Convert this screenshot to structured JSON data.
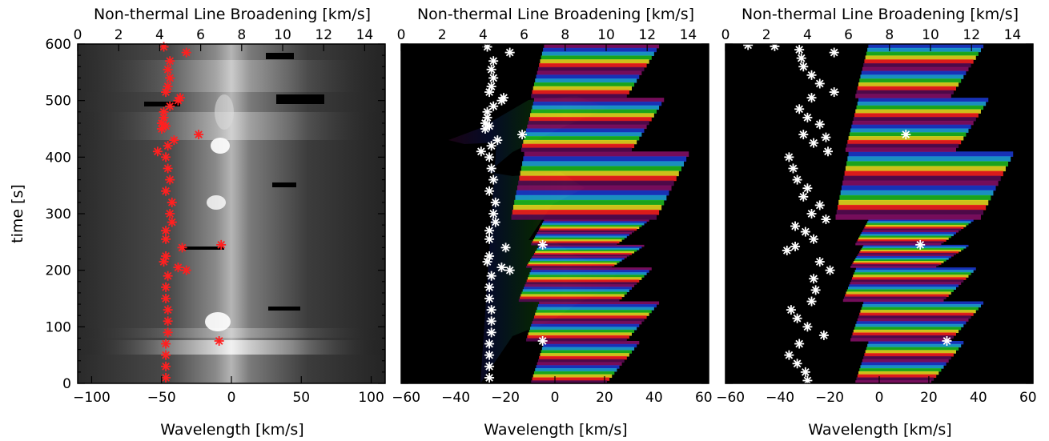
{
  "chart_data": [
    {
      "panel": "left",
      "type": "heatmap",
      "background": "grayscale spectral intensity",
      "xlabel": "Wavelength [km/s]",
      "xlim": [
        -110,
        110
      ],
      "xticks": [
        -100,
        -50,
        0,
        50,
        100
      ],
      "ylabel": "time [s]",
      "ylim": [
        0,
        600
      ],
      "yticks": [
        0,
        100,
        200,
        300,
        400,
        500,
        600
      ],
      "top_xlabel": "Non-thermal Line Broadening [km/s]",
      "top_xlim": [
        0,
        15
      ],
      "top_xticks": [
        0,
        2,
        4,
        6,
        8,
        10,
        12,
        14
      ],
      "marker_color": "#ff2020",
      "series": [
        {
          "marker": "asterisk",
          "points": [
            [
              4.2,
              595
            ],
            [
              5.3,
              585
            ],
            [
              4.5,
              570
            ],
            [
              4.4,
              555
            ],
            [
              4.5,
              540
            ],
            [
              4.4,
              525
            ],
            [
              4.3,
              515
            ],
            [
              5.0,
              505
            ],
            [
              4.9,
              500
            ],
            [
              4.5,
              490
            ],
            [
              4.2,
              480
            ],
            [
              4.2,
              470
            ],
            [
              4.1,
              460
            ],
            [
              4.3,
              455
            ],
            [
              4.1,
              450
            ],
            [
              5.9,
              440
            ],
            [
              4.7,
              430
            ],
            [
              4.4,
              420
            ],
            [
              3.9,
              410
            ],
            [
              4.3,
              400
            ],
            [
              4.4,
              380
            ],
            [
              4.5,
              360
            ],
            [
              4.3,
              340
            ],
            [
              4.6,
              320
            ],
            [
              4.5,
              300
            ],
            [
              4.6,
              285
            ],
            [
              4.3,
              270
            ],
            [
              4.3,
              255
            ],
            [
              5.1,
              240
            ],
            [
              4.3,
              225
            ],
            [
              4.2,
              215
            ],
            [
              4.9,
              205
            ],
            [
              5.3,
              200
            ],
            [
              4.4,
              190
            ],
            [
              4.3,
              170
            ],
            [
              4.3,
              150
            ],
            [
              4.4,
              130
            ],
            [
              4.4,
              110
            ],
            [
              4.4,
              90
            ],
            [
              4.3,
              70
            ],
            [
              4.3,
              50
            ],
            [
              4.3,
              30
            ],
            [
              4.3,
              10
            ],
            [
              7.0,
              245
            ],
            [
              6.9,
              75
            ]
          ]
        }
      ]
    },
    {
      "panel": "middle",
      "type": "heatmap",
      "background": "color-coded line profile",
      "xlabel": "Wavelength [km/s]",
      "xlim": [
        -62,
        62
      ],
      "xticks": [
        -60,
        -40,
        -20,
        0,
        20,
        40,
        60
      ],
      "ylim": [
        0,
        600
      ],
      "top_xlabel": "Non-thermal Line Broadening [km/s]",
      "top_xlim": [
        0,
        15
      ],
      "top_xticks": [
        0,
        2,
        4,
        6,
        8,
        10,
        12,
        14
      ],
      "marker_color": "#ffffff",
      "series": [
        {
          "marker": "asterisk",
          "points": [
            [
              4.2,
              595
            ],
            [
              5.3,
              585
            ],
            [
              4.5,
              570
            ],
            [
              4.4,
              555
            ],
            [
              4.5,
              540
            ],
            [
              4.4,
              525
            ],
            [
              4.3,
              515
            ],
            [
              5.0,
              505
            ],
            [
              4.9,
              500
            ],
            [
              4.5,
              490
            ],
            [
              4.2,
              480
            ],
            [
              4.2,
              470
            ],
            [
              4.1,
              460
            ],
            [
              4.3,
              455
            ],
            [
              4.1,
              450
            ],
            [
              5.9,
              440
            ],
            [
              4.7,
              430
            ],
            [
              4.4,
              420
            ],
            [
              3.9,
              410
            ],
            [
              4.3,
              400
            ],
            [
              4.4,
              380
            ],
            [
              4.5,
              360
            ],
            [
              4.3,
              340
            ],
            [
              4.6,
              320
            ],
            [
              4.5,
              300
            ],
            [
              4.6,
              285
            ],
            [
              4.3,
              270
            ],
            [
              4.3,
              255
            ],
            [
              5.1,
              240
            ],
            [
              4.3,
              225
            ],
            [
              4.2,
              215
            ],
            [
              4.9,
              205
            ],
            [
              5.3,
              200
            ],
            [
              4.4,
              190
            ],
            [
              4.3,
              170
            ],
            [
              4.3,
              150
            ],
            [
              4.4,
              130
            ],
            [
              4.4,
              110
            ],
            [
              4.4,
              90
            ],
            [
              4.3,
              70
            ],
            [
              4.3,
              50
            ],
            [
              4.3,
              30
            ],
            [
              4.3,
              10
            ],
            [
              6.9,
              245
            ],
            [
              6.9,
              75
            ]
          ]
        }
      ]
    },
    {
      "panel": "right",
      "type": "heatmap",
      "background": "color-coded line profile",
      "xlabel": "Wavelength [km/s]",
      "xlim": [
        -62,
        62
      ],
      "xticks": [
        -60,
        -40,
        -20,
        0,
        20,
        40,
        60
      ],
      "ylim": [
        0,
        600
      ],
      "top_xlabel": "Non-thermal Line Broadening [km/s]",
      "top_xlim": [
        0,
        15
      ],
      "top_xticks": [
        0,
        2,
        4,
        6,
        8,
        10,
        12,
        14
      ],
      "marker_color": "#ffffff",
      "series": [
        {
          "marker": "asterisk",
          "points": [
            [
              1.1,
              598
            ],
            [
              2.4,
              596
            ],
            [
              3.6,
              590
            ],
            [
              5.3,
              585
            ],
            [
              3.7,
              575
            ],
            [
              3.8,
              560
            ],
            [
              4.2,
              545
            ],
            [
              4.6,
              530
            ],
            [
              5.3,
              515
            ],
            [
              4.2,
              505
            ],
            [
              3.6,
              485
            ],
            [
              4.0,
              470
            ],
            [
              4.6,
              458
            ],
            [
              3.8,
              440
            ],
            [
              4.9,
              435
            ],
            [
              8.8,
              440
            ],
            [
              4.3,
              425
            ],
            [
              5.0,
              410
            ],
            [
              3.1,
              400
            ],
            [
              3.3,
              380
            ],
            [
              3.5,
              360
            ],
            [
              4.0,
              345
            ],
            [
              3.8,
              330
            ],
            [
              4.6,
              315
            ],
            [
              4.2,
              300
            ],
            [
              4.9,
              290
            ],
            [
              3.4,
              278
            ],
            [
              3.9,
              268
            ],
            [
              4.3,
              255
            ],
            [
              3.0,
              235
            ],
            [
              3.4,
              242
            ],
            [
              4.6,
              215
            ],
            [
              5.1,
              200
            ],
            [
              4.3,
              185
            ],
            [
              4.4,
              165
            ],
            [
              4.2,
              145
            ],
            [
              3.2,
              130
            ],
            [
              3.5,
              115
            ],
            [
              4.0,
              100
            ],
            [
              4.8,
              85
            ],
            [
              3.6,
              70
            ],
            [
              3.1,
              50
            ],
            [
              3.5,
              35
            ],
            [
              3.9,
              20
            ],
            [
              4.0,
              5
            ],
            [
              9.5,
              245
            ],
            [
              10.8,
              75
            ]
          ]
        }
      ]
    }
  ]
}
